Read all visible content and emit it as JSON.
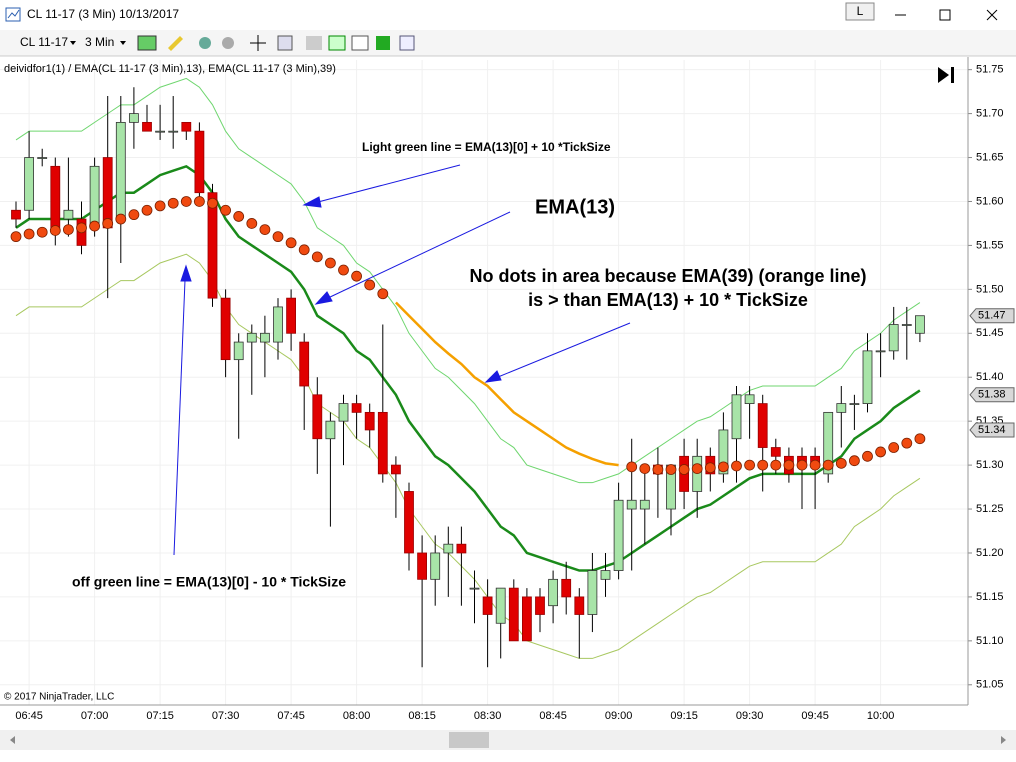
{
  "window": {
    "title": "CL 11-17 (3 Min)  10/13/2017",
    "mode_button": "L"
  },
  "toolbar": {
    "instrument": "CL 11-17",
    "interval": "3 Min"
  },
  "chart_data": {
    "type": "candlestick",
    "indicator_label": "deividfor1(1) / EMA(CL 11-17 (3 Min),13), EMA(CL 11-17 (3 Min),39)",
    "copyright": "© 2017 NinjaTrader, LLC",
    "annotations": [
      "Light green line = EMA(13)[0] + 10 *TickSize",
      "EMA(13)",
      "No dots in area because EMA(39) (orange line)",
      "is > than EMA(13) + 10 * TickSize",
      "off green line = EMA(13)[0] - 10 * TickSize"
    ],
    "categories": [
      null,
      "06:45",
      null,
      null,
      null,
      null,
      "07:00",
      null,
      null,
      null,
      null,
      "07:15",
      null,
      null,
      null,
      null,
      "07:30",
      null,
      null,
      null,
      null,
      "07:45",
      null,
      null,
      null,
      null,
      "08:00",
      null,
      null,
      null,
      null,
      "08:15",
      null,
      null,
      null,
      null,
      "08:30",
      null,
      null,
      null,
      null,
      "08:45",
      null,
      null,
      null,
      null,
      "09:00",
      null,
      null,
      null,
      null,
      "09:15",
      null,
      null,
      null,
      null,
      "09:30",
      null,
      null,
      null,
      null,
      "09:45",
      null,
      null,
      null,
      null,
      "10:00",
      null,
      null,
      null
    ],
    "open": [
      51.59,
      51.59,
      51.65,
      51.64,
      51.58,
      51.58,
      51.57,
      51.65,
      51.58,
      51.69,
      51.69,
      51.68,
      51.68,
      51.69,
      51.68,
      51.61,
      51.49,
      51.42,
      51.44,
      51.44,
      51.44,
      51.49,
      51.44,
      51.38,
      51.33,
      51.35,
      51.37,
      51.36,
      51.36,
      51.3,
      51.27,
      51.2,
      51.17,
      51.2,
      51.21,
      51.16,
      51.15,
      51.12,
      51.16,
      51.15,
      51.15,
      51.14,
      51.17,
      51.15,
      51.13,
      51.17,
      51.18,
      51.25,
      51.25,
      51.3,
      51.25,
      51.31,
      51.27,
      51.31,
      51.29,
      51.33,
      51.37,
      51.37,
      51.32,
      51.31,
      51.31,
      51.31,
      51.29,
      51.36,
      51.37,
      51.37,
      51.43,
      51.43,
      51.46,
      51.45
    ],
    "high": [
      51.6,
      51.68,
      51.66,
      51.65,
      51.65,
      51.6,
      51.65,
      51.72,
      51.72,
      51.73,
      51.71,
      51.71,
      51.72,
      51.69,
      51.69,
      51.62,
      51.5,
      51.45,
      51.46,
      51.47,
      51.49,
      51.5,
      51.45,
      51.4,
      51.36,
      51.38,
      51.38,
      51.37,
      51.46,
      51.31,
      51.28,
      51.22,
      51.22,
      51.23,
      51.23,
      51.18,
      51.17,
      51.16,
      51.17,
      51.16,
      51.16,
      51.18,
      51.19,
      51.16,
      51.2,
      51.2,
      51.28,
      51.33,
      51.29,
      51.32,
      51.3,
      51.33,
      51.33,
      51.32,
      51.36,
      51.39,
      51.39,
      51.38,
      51.33,
      51.32,
      51.32,
      51.32,
      51.36,
      51.39,
      51.38,
      51.45,
      51.45,
      51.48,
      51.48,
      51.47
    ],
    "low": [
      51.57,
      51.58,
      51.64,
      51.55,
      51.56,
      51.54,
      51.56,
      51.49,
      51.53,
      51.66,
      51.68,
      51.67,
      51.66,
      51.67,
      51.6,
      51.48,
      51.4,
      51.33,
      51.38,
      51.4,
      51.42,
      51.43,
      51.34,
      51.29,
      51.23,
      51.3,
      51.33,
      51.32,
      51.28,
      51.24,
      51.18,
      51.07,
      51.14,
      51.15,
      51.14,
      51.12,
      51.07,
      51.08,
      51.1,
      51.1,
      51.11,
      51.12,
      51.13,
      51.08,
      51.11,
      51.15,
      51.17,
      51.18,
      51.21,
      51.24,
      51.22,
      51.25,
      51.24,
      51.27,
      51.28,
      51.28,
      51.33,
      51.27,
      51.29,
      51.28,
      51.25,
      51.25,
      51.28,
      51.32,
      51.34,
      51.36,
      51.4,
      51.42,
      51.42,
      51.44
    ],
    "close": [
      51.58,
      51.65,
      51.65,
      51.57,
      51.59,
      51.55,
      51.64,
      51.57,
      51.69,
      51.7,
      51.68,
      51.68,
      51.68,
      51.68,
      51.61,
      51.49,
      51.42,
      51.44,
      51.45,
      51.45,
      51.48,
      51.45,
      51.39,
      51.33,
      51.35,
      51.37,
      51.36,
      51.34,
      51.29,
      51.29,
      51.2,
      51.17,
      51.2,
      51.21,
      51.2,
      51.16,
      51.13,
      51.16,
      51.1,
      51.1,
      51.13,
      51.17,
      51.15,
      51.13,
      51.18,
      51.18,
      51.26,
      51.26,
      51.26,
      51.29,
      51.3,
      51.27,
      51.31,
      51.29,
      51.34,
      51.38,
      51.38,
      51.32,
      51.31,
      51.29,
      51.3,
      51.3,
      51.36,
      51.37,
      51.37,
      51.43,
      51.43,
      51.46,
      51.46,
      51.47
    ],
    "up_color": "#a8e4a8",
    "down_color": "#e00000",
    "series": [
      {
        "color": "#1a8a1a",
        "style": "line",
        "values": [
          51.57,
          51.58,
          51.58,
          51.58,
          51.58,
          51.58,
          51.59,
          51.6,
          51.61,
          51.61,
          51.62,
          51.63,
          51.635,
          51.64,
          51.63,
          51.61,
          51.58,
          51.56,
          51.55,
          51.54,
          51.53,
          51.52,
          51.5,
          51.47,
          51.46,
          51.45,
          51.43,
          51.42,
          51.4,
          51.38,
          51.35,
          51.33,
          51.31,
          51.3,
          51.285,
          51.27,
          51.25,
          51.23,
          51.22,
          51.2,
          51.195,
          51.19,
          51.185,
          51.18,
          51.18,
          51.185,
          51.19,
          51.2,
          51.21,
          51.22,
          51.23,
          51.24,
          51.25,
          51.255,
          51.265,
          51.275,
          51.285,
          51.29,
          51.29,
          51.29,
          51.29,
          51.29,
          51.3,
          51.31,
          51.33,
          51.34,
          51.35,
          51.365,
          51.375,
          51.385
        ]
      },
      {
        "color": "#6fd66f",
        "style": "thin",
        "values": [
          51.67,
          51.68,
          51.68,
          51.68,
          51.68,
          51.68,
          51.69,
          51.7,
          51.71,
          51.71,
          51.72,
          51.73,
          51.735,
          51.74,
          51.73,
          51.71,
          51.68,
          51.66,
          51.65,
          51.64,
          51.63,
          51.62,
          51.6,
          51.57,
          51.56,
          51.55,
          51.53,
          51.52,
          51.5,
          51.48,
          51.45,
          51.43,
          51.41,
          51.4,
          51.385,
          51.37,
          51.35,
          51.33,
          51.32,
          51.3,
          51.295,
          51.29,
          51.285,
          51.28,
          51.28,
          51.285,
          51.29,
          51.3,
          51.31,
          51.32,
          51.33,
          51.34,
          51.35,
          51.355,
          51.365,
          51.375,
          51.385,
          51.39,
          51.39,
          51.39,
          51.39,
          51.39,
          51.4,
          51.41,
          51.43,
          51.44,
          51.45,
          51.465,
          51.475,
          51.485
        ]
      },
      {
        "color": "#a8c860",
        "style": "thin",
        "values": [
          51.47,
          51.48,
          51.48,
          51.48,
          51.48,
          51.48,
          51.49,
          51.5,
          51.51,
          51.51,
          51.52,
          51.53,
          51.535,
          51.54,
          51.53,
          51.51,
          51.48,
          51.46,
          51.45,
          51.44,
          51.43,
          51.42,
          51.4,
          51.37,
          51.36,
          51.35,
          51.33,
          51.32,
          51.3,
          51.28,
          51.25,
          51.23,
          51.21,
          51.2,
          51.185,
          51.17,
          51.15,
          51.13,
          51.12,
          51.1,
          51.095,
          51.09,
          51.085,
          51.08,
          51.08,
          51.085,
          51.09,
          51.1,
          51.11,
          51.12,
          51.13,
          51.14,
          51.15,
          51.155,
          51.165,
          51.175,
          51.185,
          51.19,
          51.19,
          51.19,
          51.19,
          51.19,
          51.2,
          51.21,
          51.23,
          51.24,
          51.25,
          51.265,
          51.275,
          51.285
        ]
      },
      {
        "color": "#f5a000",
        "dot_color": "#f04a10",
        "style": "dots",
        "values": [
          51.56,
          51.563,
          51.565,
          51.567,
          51.568,
          51.57,
          51.572,
          51.575,
          51.58,
          51.585,
          51.59,
          51.595,
          51.598,
          51.6,
          51.6,
          51.598,
          51.59,
          51.583,
          51.575,
          51.568,
          51.56,
          51.553,
          51.545,
          51.537,
          51.53,
          51.522,
          51.515,
          51.505,
          51.495,
          51.485,
          51.47,
          51.455,
          51.44,
          51.427,
          51.415,
          51.4,
          51.39,
          51.375,
          51.36,
          51.35,
          51.34,
          51.33,
          51.32,
          51.313,
          51.307,
          51.302,
          51.3,
          51.298,
          51.296,
          51.295,
          51.295,
          51.295,
          51.296,
          51.297,
          51.298,
          51.299,
          51.3,
          51.3,
          51.3,
          51.3,
          51.3,
          51.3,
          51.3,
          51.302,
          51.305,
          51.31,
          51.315,
          51.32,
          51.325,
          51.33
        ]
      }
    ],
    "ylim": [
      51.027,
      51.761
    ],
    "yticks": [
      51.05,
      {
        "value": 51.1,
        "label": "51.10"
      },
      51.15,
      {
        "value": 51.2,
        "label": "51.20"
      },
      51.25,
      {
        "value": 51.3,
        "label": "51.30"
      },
      51.35,
      {
        "value": 51.4,
        "label": "51.40"
      },
      51.45,
      {
        "value": 51.5,
        "label": "51.50"
      },
      51.55,
      {
        "value": 51.6,
        "label": "51.60"
      },
      51.65,
      {
        "value": 51.7,
        "label": "51.70"
      },
      51.75
    ],
    "price_markers": [
      51.47,
      51.38,
      51.34
    ],
    "grid": true
  }
}
